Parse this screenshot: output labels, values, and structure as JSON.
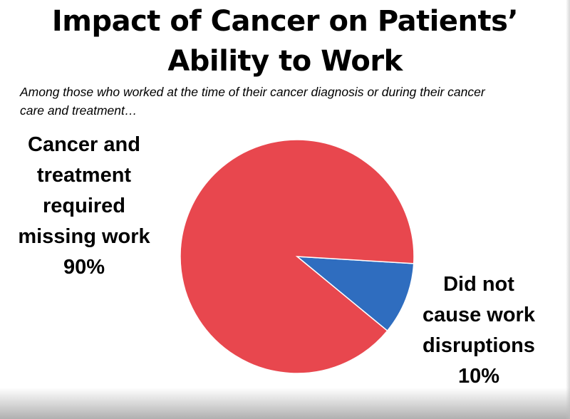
{
  "chart_data": {
    "type": "pie",
    "title": "Impact of Cancer on Patients’ Ability to Work",
    "title_lines": [
      "Impact of Cancer on Patients’",
      "Ability to Work"
    ],
    "subtitle_lines": [
      "Among those who worked at the time of their cancer diagnosis or during their cancer",
      "care and treatment…"
    ],
    "slices": [
      {
        "label_lines": [
          "Cancer and",
          "treatment",
          "required",
          "missing work"
        ],
        "value_label": "90%",
        "value": 90,
        "color": "#E8474E"
      },
      {
        "label_lines": [
          "Did not",
          "cause work",
          "disruptions"
        ],
        "value_label": "10%",
        "value": 10,
        "color": "#2F6DBF"
      }
    ],
    "legend": "none"
  }
}
